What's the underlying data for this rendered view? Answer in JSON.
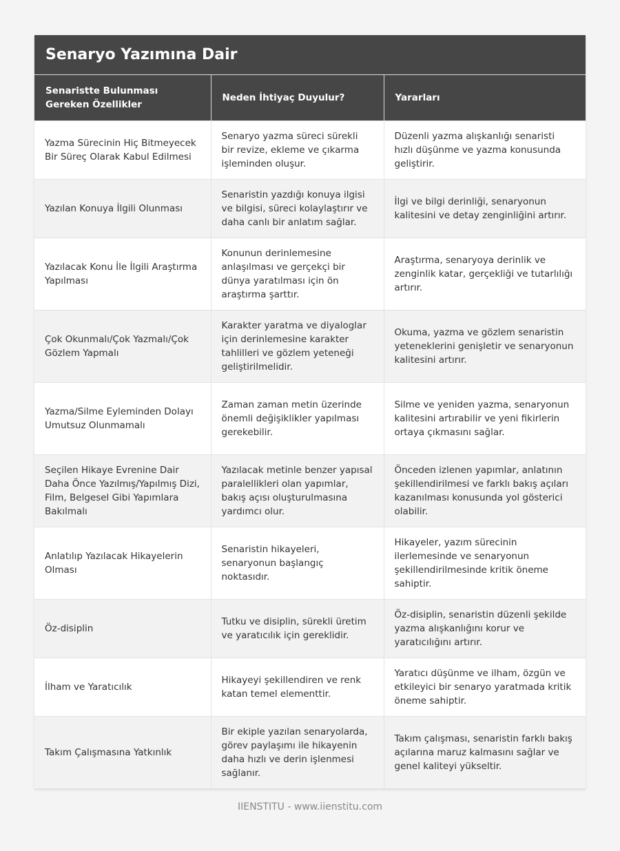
{
  "title": "Senaryo Yazımına Dair",
  "columns": [
    "Senaristte Bulunması Gereken Özellikler",
    "Neden İhtiyaç Duyulur?",
    "Yararları"
  ],
  "rows": [
    [
      "Yazma Sürecinin Hiç Bitmeyecek Bir Süreç Olarak Kabul Edilmesi",
      "Senaryo yazma süreci sürekli bir revize, ekleme ve çıkarma işleminden oluşur.",
      "Düzenli yazma alışkanlığı senaristi hızlı düşünme ve yazma konusunda geliştirir."
    ],
    [
      "Yazılan Konuya İlgili Olunması",
      "Senaristin yazdığı konuya ilgisi ve bilgisi, süreci kolaylaştırır ve daha canlı bir anlatım sağlar.",
      "İlgi ve bilgi derinliği, senaryonun kalitesini ve detay zenginliğini artırır."
    ],
    [
      "Yazılacak Konu İle İlgili Araştırma Yapılması",
      "Konunun derinlemesine anlaşılması ve gerçekçi bir dünya yaratılması için ön araştırma şarttır.",
      "Araştırma, senaryoya derinlik ve zenginlik katar, gerçekliği ve tutarlılığı artırır."
    ],
    [
      "Çok Okunmalı/Çok Yazmalı/Çok Gözlem Yapmalı",
      "Karakter yaratma ve diyaloglar için derinlemesine karakter tahlilleri ve gözlem yeteneği geliştirilmelidir.",
      "Okuma, yazma ve gözlem senaristin yeteneklerini genişletir ve senaryonun kalitesini artırır."
    ],
    [
      "Yazma/Silme Eyleminden Dolayı Umutsuz Olunmamalı",
      "Zaman zaman metin üzerinde önemli değişiklikler yapılması gerekebilir.",
      "Silme ve yeniden yazma, senaryonun kalitesini artırabilir ve yeni fikirlerin ortaya çıkmasını sağlar."
    ],
    [
      "Seçilen Hikaye Evrenine Dair Daha Önce Yazılmış/Yapılmış Dizi, Film, Belgesel Gibi Yapımlara Bakılmalı",
      "Yazılacak metinle benzer yapısal paralellikleri olan yapımlar, bakış açısı oluşturulmasına yardımcı olur.",
      "Önceden izlenen yapımlar, anlatının şekillendirilmesi ve farklı bakış açıları kazanılması konusunda yol gösterici olabilir."
    ],
    [
      "Anlatılıp Yazılacak Hikayelerin Olması",
      "Senaristin hikayeleri, senaryonun başlangıç noktasıdır.",
      "Hikayeler, yazım sürecinin ilerlemesinde ve senaryonun şekillendirilmesinde kritik öneme sahiptir."
    ],
    [
      "Öz-disiplin",
      "Tutku ve disiplin, sürekli üretim ve yaratıcılık için gereklidir.",
      "Öz-disiplin, senaristin düzenli şekilde yazma alışkanlığını korur ve yaratıcılığını artırır."
    ],
    [
      "İlham ve Yaratıcılık",
      "Hikayeyi şekillendiren ve renk katan temel elementtir.",
      "Yaratıcı düşünme ve ilham, özgün ve etkileyici bir senaryo yaratmada kritik öneme sahiptir."
    ],
    [
      "Takım Çalışmasına Yatkınlık",
      "Bir ekiple yazılan senaryolarda, görev paylaşımı ile hikayenin daha hızlı ve derin işlenmesi sağlanır.",
      "Takım çalışması, senaristin farklı bakış açılarına maruz kalmasını sağlar ve genel kaliteyi yükseltir."
    ]
  ],
  "footer": "IIENSTITU - www.iienstitu.com"
}
